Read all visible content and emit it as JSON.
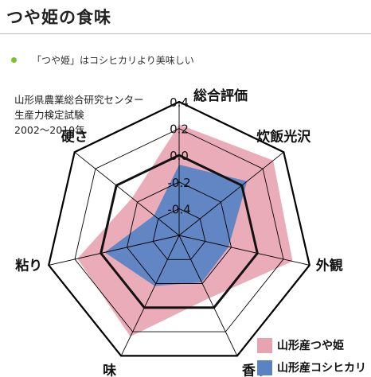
{
  "title": "つや姫の食味",
  "note": "「つや姫」はコシヒカリより美味しい",
  "source": [
    "山形県農業総合研究センター",
    "生産力検定試験",
    "2002〜2010年"
  ],
  "colors": {
    "tsuyahime": "#e8a3b1",
    "koshihikari": "#5b83c4",
    "accent": "#7ec02a"
  },
  "chart_data": {
    "type": "radar",
    "axes": [
      "総合評価",
      "炊飯光沢",
      "外観",
      "香り",
      "味",
      "粘り",
      "硬さ"
    ],
    "ticks": [
      "0.4",
      "0.2",
      "0.0",
      "-0.2",
      "-0.4"
    ],
    "range": [
      -0.6,
      0.4
    ],
    "gridlines": true,
    "baseline": 0.0,
    "series": [
      {
        "name": "山形産つや姫",
        "values": [
          0.23,
          0.3,
          0.27,
          -0.08,
          0.24,
          0.18,
          -0.15
        ]
      },
      {
        "name": "山形産コシヒカリ",
        "values": [
          -0.07,
          0.05,
          -0.22,
          -0.21,
          -0.18,
          -0.03,
          -0.36
        ]
      }
    ],
    "legend_position": "bottom-right"
  }
}
